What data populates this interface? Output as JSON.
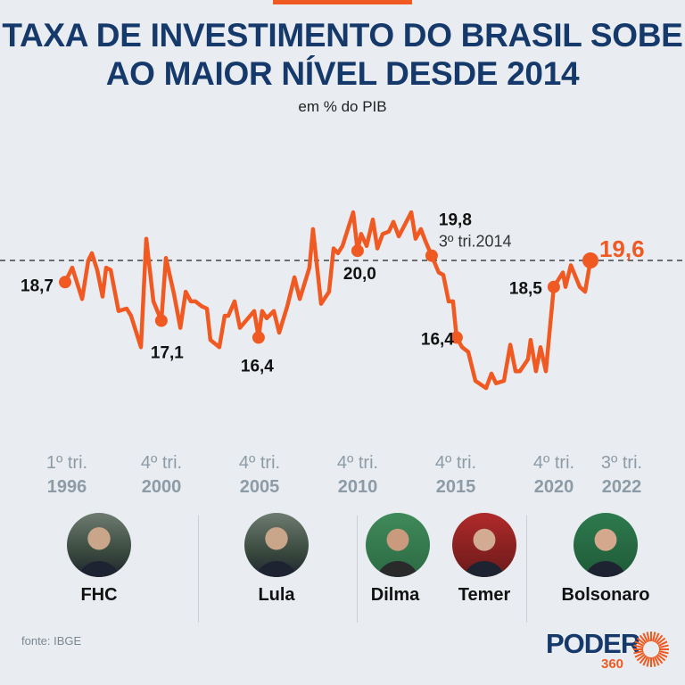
{
  "header": {
    "title_line1": "TAXA DE INVESTIMENTO DO BRASIL SOBE",
    "title_line2": "AO MAIOR NÍVEL DESDE 2014",
    "subtitle": "em % do PIB"
  },
  "colors": {
    "accent": "#f05a22",
    "title": "#16396b",
    "background": "#e9edf1",
    "axis_text": "#8d9ba6"
  },
  "chart_data": {
    "type": "line",
    "title": "Taxa de investimento do Brasil sobe ao maior nível desde 2014",
    "ylabel": "em % do PIB",
    "ylim": [
      13.5,
      22.5
    ],
    "xlim": [
      1996,
      2022.5
    ],
    "reference_line": {
      "value": 19.6,
      "style": "dashed"
    },
    "series": [
      {
        "name": "Taxa de investimento (% do PIB)",
        "points": [
          [
            1996.0,
            18.7
          ],
          [
            1996.36,
            19.3
          ],
          [
            1996.86,
            18.0
          ],
          [
            1997.17,
            19.6
          ],
          [
            1997.35,
            19.9
          ],
          [
            1997.62,
            19.2
          ],
          [
            1997.89,
            18.1
          ],
          [
            1998.07,
            19.3
          ],
          [
            1998.3,
            19.2
          ],
          [
            1998.7,
            17.5
          ],
          [
            1999.11,
            17.6
          ],
          [
            1999.33,
            17.3
          ],
          [
            1999.83,
            16.0
          ],
          [
            2000.1,
            20.5
          ],
          [
            2000.46,
            17.9
          ],
          [
            2000.86,
            17.1
          ],
          [
            2001.09,
            19.7
          ],
          [
            2001.5,
            18.2
          ],
          [
            2001.82,
            16.8
          ],
          [
            2002.09,
            18.3
          ],
          [
            2002.35,
            17.9
          ],
          [
            2002.58,
            17.9
          ],
          [
            2002.89,
            17.7
          ],
          [
            2003.16,
            17.6
          ],
          [
            2003.34,
            16.3
          ],
          [
            2003.79,
            16.0
          ],
          [
            2004.06,
            17.3
          ],
          [
            2004.24,
            17.3
          ],
          [
            2004.56,
            17.9
          ],
          [
            2004.83,
            16.8
          ],
          [
            2005.55,
            17.5
          ],
          [
            2005.77,
            16.4
          ],
          [
            2005.95,
            17.5
          ],
          [
            2006.18,
            17.2
          ],
          [
            2006.54,
            17.5
          ],
          [
            2006.81,
            16.6
          ],
          [
            2007.22,
            17.7
          ],
          [
            2007.58,
            18.9
          ],
          [
            2007.85,
            18.0
          ],
          [
            2008.34,
            19.3
          ],
          [
            2008.52,
            20.9
          ],
          [
            2008.93,
            17.8
          ],
          [
            2009.33,
            18.3
          ],
          [
            2009.56,
            20.1
          ],
          [
            2009.78,
            19.9
          ],
          [
            2010.01,
            20.2
          ],
          [
            2010.55,
            21.6
          ],
          [
            2010.77,
            20.0
          ],
          [
            2010.95,
            20.7
          ],
          [
            2011.23,
            20.2
          ],
          [
            2011.54,
            21.3
          ],
          [
            2011.77,
            20.1
          ],
          [
            2012.04,
            20.7
          ],
          [
            2012.35,
            20.8
          ],
          [
            2012.58,
            21.2
          ],
          [
            2012.85,
            20.6
          ],
          [
            2013.48,
            21.6
          ],
          [
            2013.7,
            20.5
          ],
          [
            2013.97,
            20.9
          ],
          [
            2014.2,
            20.4
          ],
          [
            2014.51,
            19.8
          ],
          [
            2014.87,
            19.1
          ],
          [
            2015.1,
            19.0
          ],
          [
            2015.37,
            17.9
          ],
          [
            2015.59,
            17.9
          ],
          [
            2015.77,
            16.4
          ],
          [
            2016.05,
            16.0
          ],
          [
            2016.36,
            15.8
          ],
          [
            2016.72,
            14.6
          ],
          [
            2017.26,
            14.3
          ],
          [
            2017.53,
            14.9
          ],
          [
            2017.76,
            14.5
          ],
          [
            2018.16,
            14.6
          ],
          [
            2018.48,
            16.1
          ],
          [
            2018.75,
            15.0
          ],
          [
            2018.97,
            15.0
          ],
          [
            2019.38,
            15.5
          ],
          [
            2019.51,
            16.3
          ],
          [
            2019.78,
            15.0
          ],
          [
            2020.01,
            16.0
          ],
          [
            2020.28,
            15.0
          ],
          [
            2020.68,
            18.5
          ],
          [
            2020.91,
            18.8
          ],
          [
            2021.14,
            19.1
          ],
          [
            2021.27,
            18.5
          ],
          [
            2021.54,
            19.4
          ],
          [
            2021.99,
            18.5
          ],
          [
            2022.26,
            18.3
          ],
          [
            2022.53,
            19.6
          ]
        ]
      }
    ],
    "annotations": [
      {
        "label": "18,7",
        "x": 1996.0,
        "value": 18.7
      },
      {
        "label": "17,1",
        "x": 2000.86,
        "value": 17.1
      },
      {
        "label": "16,4",
        "x": 2005.77,
        "value": 16.4
      },
      {
        "label": "20,0",
        "x": 2010.77,
        "value": 20.0
      },
      {
        "label": "19,8",
        "sublabel": "3º tri.2014",
        "x": 2014.51,
        "value": 19.8
      },
      {
        "label": "16,4",
        "x": 2015.77,
        "value": 16.4
      },
      {
        "label": "18,5",
        "x": 2020.68,
        "value": 18.5
      },
      {
        "label": "19,6",
        "x": 2022.53,
        "value": 19.6,
        "highlight": true
      }
    ],
    "x_ticks": [
      {
        "quarter": "1º tri.",
        "year": "1996"
      },
      {
        "quarter": "4º tri.",
        "year": "2000"
      },
      {
        "quarter": "4º tri.",
        "year": "2005"
      },
      {
        "quarter": "4º tri.",
        "year": "2010"
      },
      {
        "quarter": "4º tri.",
        "year": "2015"
      },
      {
        "quarter": "4º tri.",
        "year": "2020"
      },
      {
        "quarter": "3º tri.",
        "year": "2022"
      }
    ]
  },
  "presidents": [
    {
      "name": "FHC"
    },
    {
      "name": "Lula"
    },
    {
      "name": "Dilma"
    },
    {
      "name": "Temer"
    },
    {
      "name": "Bolsonaro"
    }
  ],
  "footer": {
    "source": "fonte: IBGE",
    "logo_word": "PODER",
    "logo_number": "360"
  }
}
